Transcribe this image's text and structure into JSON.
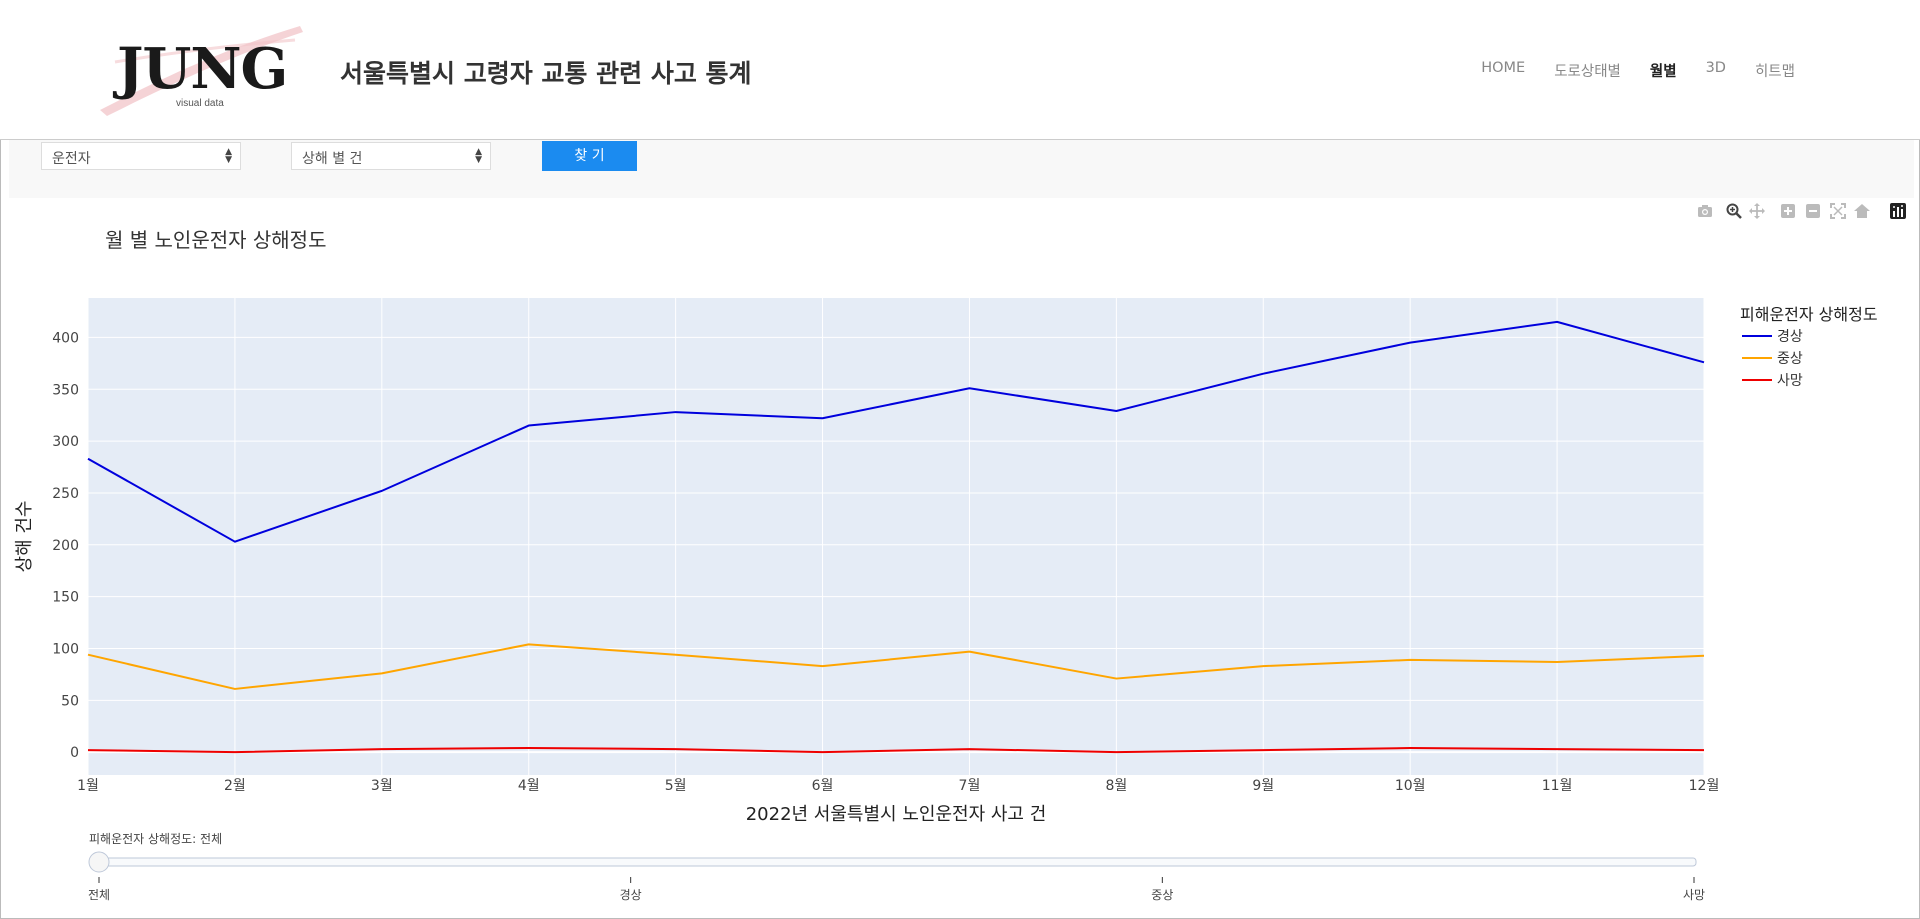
{
  "header": {
    "logo_text": "JUNG",
    "logo_sub": "visual data",
    "title": "서울특별시 고령자 교통 관련 사고 통계",
    "nav": [
      {
        "label": "HOME",
        "active": false
      },
      {
        "label": "도로상태별",
        "active": false
      },
      {
        "label": "월별",
        "active": true
      },
      {
        "label": "3D",
        "active": false
      },
      {
        "label": "히트맵",
        "active": false
      }
    ]
  },
  "controls": {
    "select_1": "운전자",
    "select_2": "상해 별 건",
    "find_button": "찾 기"
  },
  "modebar": {
    "icons": [
      "camera-icon",
      "zoom-icon",
      "pan-icon",
      "zoom-in-icon",
      "zoom-out-icon",
      "autoscale-icon",
      "reset-axes-icon",
      "plotly-logo-icon"
    ]
  },
  "chart_data": {
    "type": "line",
    "title": "월 별 노인운전자 상해정도",
    "xlabel": "2022년 서울특별시 노인운전자 사고 건",
    "ylabel": "상해 건수",
    "categories": [
      "1월",
      "2월",
      "3월",
      "4월",
      "5월",
      "6월",
      "7월",
      "8월",
      "9월",
      "10월",
      "11월",
      "12월"
    ],
    "ylim": [
      -22,
      438
    ],
    "yticks": [
      0,
      50,
      100,
      150,
      200,
      250,
      300,
      350,
      400
    ],
    "grid": true,
    "legend_title": "피해운전자 상해정도",
    "legend_position": "right",
    "series": [
      {
        "name": "경상",
        "color": "#0000dd",
        "values": [
          283,
          203,
          252,
          315,
          328,
          322,
          351,
          329,
          365,
          395,
          415,
          376
        ]
      },
      {
        "name": "중상",
        "color": "#ffa500",
        "values": [
          94,
          61,
          76,
          104,
          94,
          83,
          97,
          71,
          83,
          89,
          87,
          93
        ]
      },
      {
        "name": "사망",
        "color": "#ee0000",
        "values": [
          2,
          0,
          3,
          4,
          3,
          0,
          3,
          0,
          2,
          4,
          3,
          2
        ]
      }
    ],
    "slider": {
      "current_label": "피해운전자 상해정도: 전체",
      "steps": [
        "전체",
        "경상",
        "중상",
        "사망"
      ],
      "active_index": 0
    }
  }
}
